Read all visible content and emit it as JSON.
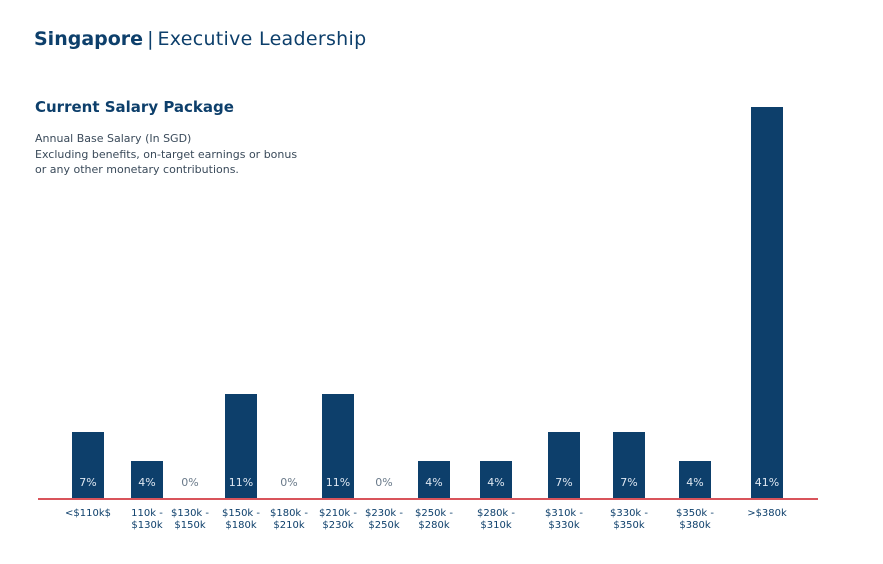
{
  "header": {
    "region": "Singapore",
    "separator": "|",
    "role": "Executive Leadership"
  },
  "chart_data": {
    "type": "bar",
    "title": "Current Salary Package",
    "subtitle": [
      "Annual Base Salary (In SGD)",
      "Excluding benefits, on-target earnings or bonus",
      "or any other monetary contributions."
    ],
    "categories": [
      [
        "<$110k$",
        ""
      ],
      [
        "110k -",
        "$130k"
      ],
      [
        "$130k -",
        "$150k"
      ],
      [
        "$150k -",
        "$180k"
      ],
      [
        "$180k -",
        "$210k"
      ],
      [
        "$210k -",
        "$230k"
      ],
      [
        "$230k -",
        "$250k"
      ],
      [
        "$250k -",
        "$280k"
      ],
      [
        "$280k -",
        "$310k"
      ],
      [
        "$310k -",
        "$330k"
      ],
      [
        "$330k -",
        "$350k"
      ],
      [
        "$350k -",
        "$380k"
      ],
      [
        ">$380k",
        ""
      ]
    ],
    "values": [
      7,
      4,
      0,
      11,
      0,
      11,
      0,
      4,
      4,
      7,
      7,
      4,
      41
    ],
    "labels": [
      "7%",
      "4%",
      "0%",
      "11%",
      "0%",
      "11%",
      "0%",
      "4%",
      "4%",
      "7%",
      "7%",
      "4%",
      "41%"
    ],
    "ylim": [
      0,
      41
    ],
    "colors": {
      "bar": "#0d3f6b",
      "baseline": "#d9545b"
    }
  }
}
